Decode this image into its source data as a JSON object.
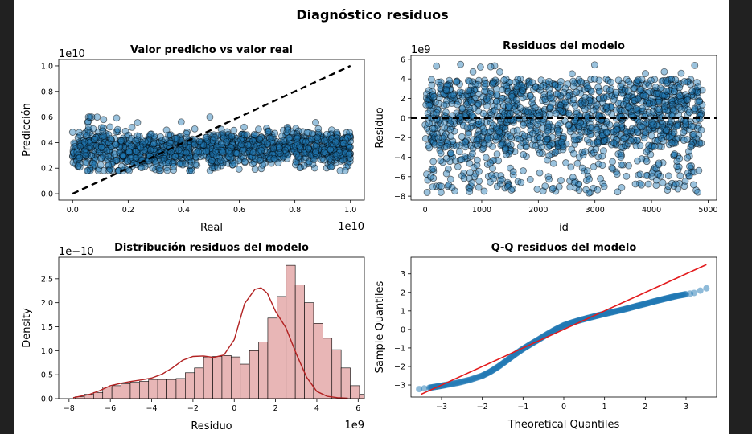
{
  "figure": {
    "suptitle": "Diagnóstico residuos"
  },
  "chart_data": [
    {
      "type": "scatter",
      "title": "Valor predicho vs valor real",
      "xlabel": "Real",
      "ylabel": "Predicción",
      "x_offset_label": "1e10",
      "y_offset_label": "1e10",
      "xlim": [
        -0.05,
        1.05
      ],
      "ylim": [
        -0.05,
        1.05
      ],
      "xticks": [
        "0.0",
        "0.2",
        "0.4",
        "0.6",
        "0.8",
        "1.0"
      ],
      "yticks": [
        "0.0",
        "0.2",
        "0.4",
        "0.6",
        "0.8",
        "1.0"
      ],
      "reference_line": {
        "from": [
          0.0,
          0.0
        ],
        "to": [
          1.0,
          1.0
        ],
        "style": "dashed",
        "color": "#000000"
      },
      "point_color": "#1f77b4",
      "grid": false,
      "description_of_points": "Approximately 4900 points; predictions concentrated between 0.2 and 0.55 (x1e10) across real values 0 to 1 (x1e10), with a denser cluster near real 0.05-0.15 reaching up to 0.6"
    },
    {
      "type": "scatter",
      "title": "Residuos del modelo",
      "xlabel": "id",
      "ylabel": "Residuo",
      "y_offset_label": "1e9",
      "xlim": [
        -250,
        5150
      ],
      "ylim": [
        -8.4,
        6.4
      ],
      "xticks": [
        "0",
        "1000",
        "2000",
        "3000",
        "4000",
        "5000"
      ],
      "yticks": [
        "−8",
        "−6",
        "−4",
        "−2",
        "0",
        "2",
        "4",
        "6"
      ],
      "reference_line": {
        "y": 0,
        "style": "dashed",
        "color": "#000000"
      },
      "point_color": "#1f77b4",
      "grid": false,
      "description_of_points": "Residuals for ids 0 to ~4900, dense band between -3 and 4 (x1e9), sparse tail down to about -7.7"
    },
    {
      "type": "bar",
      "subtype": "histogram_with_kde",
      "title": "Distribución residuos del modelo",
      "xlabel": "Residuo",
      "ylabel": "Density",
      "x_offset_label": "1e9",
      "y_offset_label": "1e−10",
      "xlim": [
        -8.5,
        6.3
      ],
      "ylim": [
        0,
        2.95
      ],
      "xticks": [
        "−8",
        "−6",
        "−4",
        "−2",
        "0",
        "2",
        "4",
        "6"
      ],
      "yticks": [
        "0.0",
        "0.5",
        "1.0",
        "1.5",
        "2.0",
        "2.5"
      ],
      "bin_start": -7.7,
      "bin_width": 0.444,
      "values": [
        0.04,
        0.09,
        0.13,
        0.24,
        0.27,
        0.31,
        0.34,
        0.36,
        0.4,
        0.4,
        0.4,
        0.42,
        0.54,
        0.64,
        0.87,
        0.88,
        0.9,
        0.87,
        0.72,
        1.0,
        1.18,
        1.68,
        2.13,
        2.78,
        2.37,
        2.0,
        1.57,
        1.26,
        1.02,
        0.64,
        0.27,
        0.09,
        0.07,
        0.02
      ],
      "bar_color": "#e8b6b6",
      "kde": {
        "x": [
          -7.8,
          -7.0,
          -6.5,
          -6.0,
          -5.5,
          -5.0,
          -4.5,
          -4.0,
          -3.5,
          -3.0,
          -2.5,
          -2.0,
          -1.5,
          -1.0,
          -0.5,
          0.0,
          0.5,
          1.0,
          1.3,
          1.6,
          2.0,
          2.5,
          3.0,
          3.5,
          4.0,
          4.5,
          5.0,
          5.5
        ],
        "y": [
          0.02,
          0.09,
          0.17,
          0.27,
          0.32,
          0.36,
          0.39,
          0.43,
          0.51,
          0.64,
          0.8,
          0.88,
          0.89,
          0.86,
          0.91,
          1.23,
          1.98,
          2.28,
          2.31,
          2.2,
          1.82,
          1.48,
          0.94,
          0.45,
          0.15,
          0.05,
          0.02,
          0.01
        ],
        "color": "#b22222"
      },
      "grid": false
    },
    {
      "type": "scatter",
      "title": "Q-Q residuos del modelo",
      "xlabel": "Theoretical Quantiles",
      "ylabel": "Sample Quantiles",
      "xlim": [
        -3.75,
        3.75
      ],
      "ylim": [
        -3.65,
        3.9
      ],
      "xticks": [
        "−3",
        "−2",
        "−1",
        "0",
        "1",
        "2",
        "3"
      ],
      "yticks": [
        "−3",
        "−2",
        "−1",
        "0",
        "1",
        "2",
        "3"
      ],
      "reference_line": {
        "from": [
          -3.5,
          -3.5
        ],
        "to": [
          3.5,
          3.5
        ],
        "style": "solid",
        "color": "#e31a1c"
      },
      "point_color": "#1f77b4",
      "points": {
        "x": [
          -3.55,
          -3.3,
          -3.1,
          -2.9,
          -2.6,
          -2.3,
          -2.0,
          -1.8,
          -1.6,
          -1.4,
          -1.2,
          -1.0,
          -0.8,
          -0.6,
          -0.4,
          -0.2,
          0.0,
          0.2,
          0.4,
          0.6,
          0.8,
          1.0,
          1.2,
          1.4,
          1.6,
          1.8,
          2.0,
          2.2,
          2.4,
          2.6,
          2.8,
          3.0,
          3.2,
          3.5
        ],
        "y": [
          -3.22,
          -3.15,
          -3.08,
          -3.0,
          -2.88,
          -2.72,
          -2.5,
          -2.28,
          -2.0,
          -1.68,
          -1.35,
          -1.05,
          -0.78,
          -0.52,
          -0.25,
          0.0,
          0.22,
          0.37,
          0.5,
          0.62,
          0.73,
          0.84,
          0.94,
          1.04,
          1.15,
          1.27,
          1.38,
          1.5,
          1.61,
          1.72,
          1.82,
          1.9,
          1.97,
          2.22
        ]
      },
      "grid": false
    }
  ]
}
